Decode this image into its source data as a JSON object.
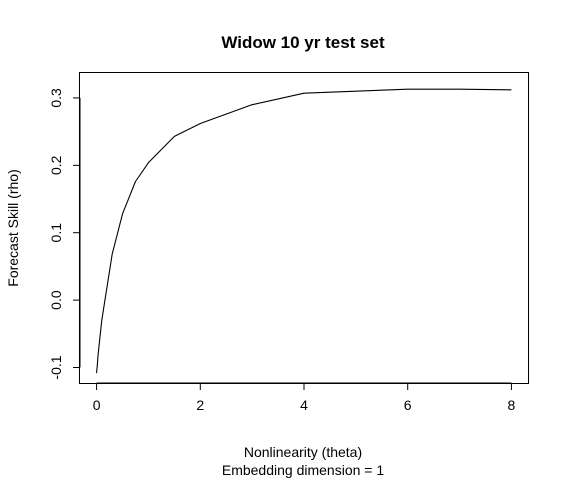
{
  "chart_data": {
    "type": "line",
    "title": "Widow 10 yr test set",
    "xlabel": "Nonlinearity (theta)",
    "subtitle": "Embedding dimension = 1",
    "ylabel": "Forecast Skill (rho)",
    "xlim": [
      -0.32,
      8.32
    ],
    "ylim": [
      -0.123,
      0.337
    ],
    "x_ticks": [
      0,
      2,
      4,
      6,
      8
    ],
    "x_tick_labels": [
      "0",
      "2",
      "4",
      "6",
      "8"
    ],
    "y_ticks": [
      -0.1,
      0.0,
      0.1,
      0.2,
      0.3
    ],
    "y_tick_labels": [
      "-0.1",
      "0.0",
      "0.1",
      "0.2",
      "0.3"
    ],
    "grid": false,
    "series": [
      {
        "x": [
          0,
          0.0001,
          0.0003,
          0.001,
          0.003,
          0.01,
          0.03,
          0.1,
          0.3,
          0.5,
          0.75,
          1,
          1.5,
          2,
          3,
          4,
          5,
          6,
          7,
          8
        ],
        "y": [
          -0.108,
          -0.108,
          -0.108,
          -0.107,
          -0.105,
          -0.1,
          -0.08,
          -0.03,
          0.068,
          0.128,
          0.176,
          0.204,
          0.243,
          0.262,
          0.29,
          0.307,
          0.31,
          0.313,
          0.313,
          0.312
        ]
      }
    ]
  }
}
